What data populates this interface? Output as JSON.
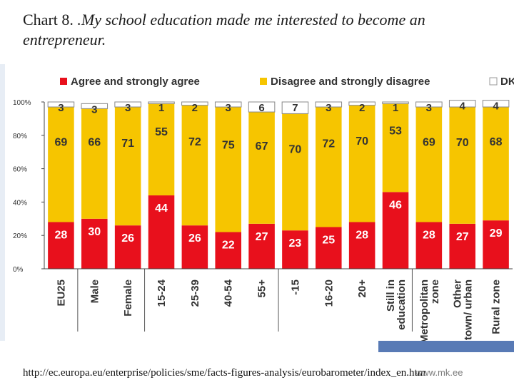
{
  "slide": {
    "title_lead": "Chart 8. ",
    "title_rest": ".My school education made me interested to become an entrepreneur.",
    "source_url": "http://ec.europa.eu/enterprise/policies/sme/facts-figures-analysis/eurobarometer/index_en.htm",
    "watermark": "www.mk.ee"
  },
  "chart_data": {
    "type": "bar",
    "stacked": true,
    "categories": [
      "EU25",
      "Male",
      "Female",
      "15-24",
      "25-39",
      "40-54",
      "55+",
      "-15",
      "16-20",
      "20+",
      "Still in education",
      "Metropolitan zone",
      "Other town/ urban",
      "Rural zone"
    ],
    "series": [
      {
        "name": "Agree and strongly agree",
        "color": "#e8101c",
        "values": [
          28,
          30,
          26,
          44,
          26,
          22,
          27,
          23,
          25,
          28,
          46,
          28,
          27,
          29
        ]
      },
      {
        "name": "Disagree and strongly disagree",
        "color": "#f6c500",
        "values": [
          69,
          66,
          71,
          55,
          72,
          75,
          67,
          70,
          72,
          70,
          53,
          69,
          70,
          68
        ]
      },
      {
        "name": "DK",
        "color": "#ffffff",
        "values": [
          3,
          3,
          3,
          1,
          2,
          3,
          6,
          7,
          3,
          2,
          1,
          3,
          4,
          4
        ]
      }
    ],
    "yticks": [
      "0%",
      "20%",
      "40%",
      "60%",
      "80%",
      "100%"
    ],
    "ylim": [
      0,
      100
    ],
    "legend_position": "top",
    "legend_labels": [
      "Agree and strongly agree",
      "Disagree and strongly disagree",
      "DK"
    ]
  }
}
